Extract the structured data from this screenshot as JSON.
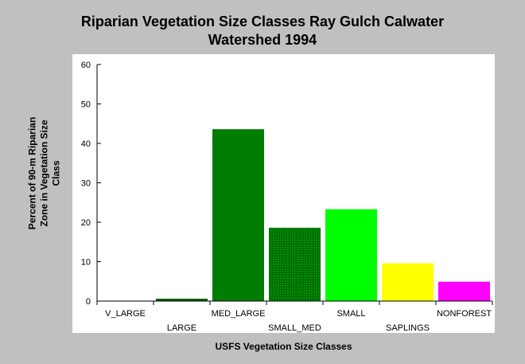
{
  "chart_data": {
    "type": "bar",
    "title_lines": [
      "Riparian Vegetation Size Classes Ray Gulch Calwater",
      "Watershed 1994"
    ],
    "xlabel": "USFS Vegetation Size Classes",
    "ylabel_lines": [
      "Percent of 90-m Riparian",
      "Zone in Vegetation Size",
      "Class"
    ],
    "categories": [
      "V_LARGE",
      "LARGE",
      "MED_LARGE",
      "SMALL_MED",
      "SMALL",
      "SAPLINGS",
      "NONFOREST"
    ],
    "values": [
      0,
      0.6,
      43.6,
      18.6,
      23.3,
      9.6,
      4.9
    ],
    "colors": [
      "#006400",
      "#006400",
      "#007c00",
      "#007c00",
      "#00ff00",
      "#ffff00",
      "#ff00ff"
    ],
    "hatched": [
      false,
      false,
      false,
      true,
      false,
      false,
      false
    ],
    "ylim": [
      0,
      60
    ],
    "yticks": [
      0,
      10,
      20,
      30,
      40,
      50,
      60
    ],
    "grid": false,
    "legend": "none"
  }
}
